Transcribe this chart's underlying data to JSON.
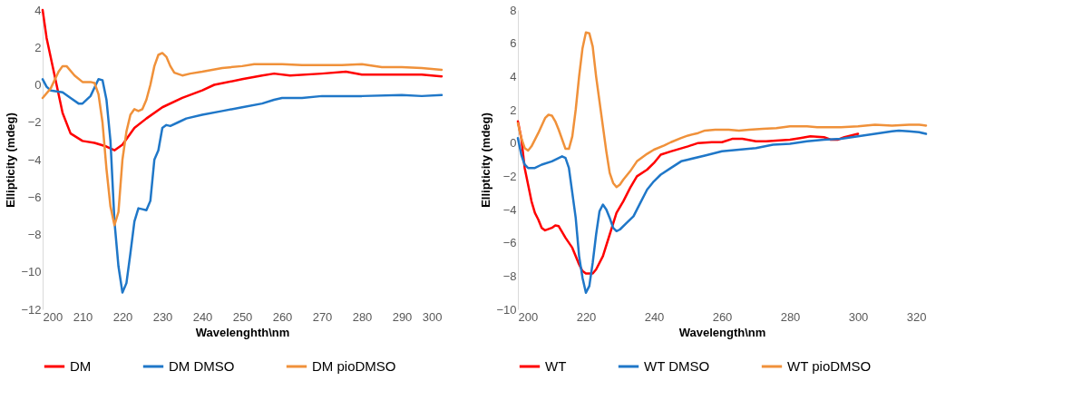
{
  "chart_data": [
    {
      "type": "line",
      "xlabel": "Wavelenghth\\nm",
      "ylabel": "Ellipticity (mdeg)",
      "xlim": [
        200,
        300
      ],
      "xticks": [
        200,
        210,
        220,
        230,
        240,
        250,
        260,
        270,
        280,
        290,
        300
      ],
      "ylim": [
        -12,
        4
      ],
      "yticks": [
        -12,
        -10,
        -8,
        -6,
        -4,
        -2,
        0,
        2,
        4
      ],
      "grid": false,
      "legend": "bottom",
      "series": [
        {
          "name": "DM",
          "color": "#ff0000",
          "x": [
            200,
            201,
            203,
            205,
            207,
            210,
            213,
            216,
            218,
            220,
            223,
            226,
            230,
            235,
            240,
            243,
            250,
            255,
            258,
            262,
            270,
            276,
            280,
            290,
            295,
            300
          ],
          "values": [
            4,
            2.5,
            0.5,
            -1.5,
            -2.6,
            -3,
            -3.1,
            -3.3,
            -3.5,
            -3.2,
            -2.3,
            -1.8,
            -1.2,
            -0.7,
            -0.3,
            0,
            0.3,
            0.5,
            0.6,
            0.5,
            0.6,
            0.7,
            0.55,
            0.55,
            0.55,
            0.45
          ]
        },
        {
          "name": "DM DMSO",
          "color": "#1f77c8",
          "x": [
            200,
            201,
            202,
            205,
            207,
            209,
            210,
            212,
            214,
            215,
            216,
            217,
            218,
            219,
            220,
            221,
            222,
            223,
            224,
            225,
            226,
            227,
            228,
            229,
            230,
            231,
            232,
            234,
            236,
            240,
            245,
            250,
            255,
            258,
            260,
            265,
            270,
            280,
            290,
            295,
            300
          ],
          "values": [
            0.3,
            -0.1,
            -0.3,
            -0.4,
            -0.7,
            -1.0,
            -1.0,
            -0.6,
            0.3,
            0.25,
            -0.8,
            -3,
            -7.3,
            -9.7,
            -11.1,
            -10.6,
            -9,
            -7.3,
            -6.6,
            -6.65,
            -6.7,
            -6.2,
            -4.0,
            -3.5,
            -2.3,
            -2.15,
            -2.2,
            -2.0,
            -1.8,
            -1.6,
            -1.4,
            -1.2,
            -1.0,
            -0.8,
            -0.7,
            -0.7,
            -0.6,
            -0.6,
            -0.55,
            -0.6,
            -0.55
          ]
        },
        {
          "name": "DM pioDMSO",
          "color": "#f0913a",
          "x": [
            200,
            202,
            204,
            205,
            206,
            208,
            210,
            212,
            213,
            214,
            215,
            216,
            217,
            218,
            219,
            220,
            221,
            222,
            223,
            224,
            225,
            226,
            227,
            228,
            229,
            230,
            231,
            232,
            233,
            235,
            237,
            240,
            245,
            250,
            253,
            260,
            265,
            275,
            280,
            285,
            290,
            295,
            300
          ],
          "values": [
            -0.7,
            -0.2,
            0.7,
            1.0,
            1.0,
            0.5,
            0.15,
            0.15,
            0.1,
            -0.5,
            -2,
            -4.5,
            -6.5,
            -7.5,
            -6.8,
            -4,
            -2.5,
            -1.6,
            -1.3,
            -1.4,
            -1.3,
            -0.8,
            0,
            1.0,
            1.6,
            1.7,
            1.5,
            1.0,
            0.65,
            0.5,
            0.6,
            0.7,
            0.9,
            1.0,
            1.1,
            1.1,
            1.05,
            1.05,
            1.1,
            0.95,
            0.95,
            0.9,
            0.8
          ]
        }
      ]
    },
    {
      "type": "line",
      "xlabel": "Wavelength\\nm",
      "ylabel": "Ellipticity (mdeg)",
      "xlim": [
        200,
        320
      ],
      "xticks": [
        200,
        220,
        240,
        260,
        280,
        300,
        320
      ],
      "ylim": [
        -10,
        8
      ],
      "yticks": [
        -10,
        -8,
        -6,
        -4,
        -2,
        0,
        2,
        4,
        6,
        8
      ],
      "grid": false,
      "legend": "bottom",
      "series": [
        {
          "name": "WT",
          "color": "#ff0000",
          "x": [
            200,
            201,
            202,
            203,
            204,
            205,
            206,
            207,
            208,
            210,
            211,
            212,
            214,
            216,
            218,
            219,
            220,
            222,
            223,
            225,
            227,
            229,
            231,
            233,
            235,
            238,
            240,
            242,
            245,
            250,
            253,
            257,
            260,
            263,
            266,
            270,
            273,
            276,
            280,
            283,
            286,
            290,
            292,
            294,
            296,
            300
          ],
          "values": [
            1.3,
            0.3,
            -1.5,
            -2.5,
            -3.5,
            -4.2,
            -4.6,
            -5.1,
            -5.25,
            -5.1,
            -4.95,
            -5.0,
            -5.7,
            -6.3,
            -7.3,
            -7.7,
            -7.85,
            -7.85,
            -7.6,
            -6.8,
            -5.5,
            -4.2,
            -3.5,
            -2.7,
            -2.0,
            -1.6,
            -1.2,
            -0.7,
            -0.5,
            -0.2,
            0,
            0.05,
            0.05,
            0.25,
            0.25,
            0.1,
            0.1,
            0.15,
            0.2,
            0.3,
            0.4,
            0.35,
            0.2,
            0.2,
            0.35,
            0.55
          ]
        },
        {
          "name": "WT DMSO",
          "color": "#1f77c8",
          "x": [
            200,
            201,
            202,
            203,
            205,
            207,
            210,
            213,
            214,
            215,
            216,
            217,
            218,
            219,
            220,
            221,
            222,
            223,
            224,
            225,
            226,
            227,
            228,
            229,
            230,
            232,
            234,
            236,
            238,
            240,
            242,
            245,
            248,
            250,
            255,
            260,
            265,
            270,
            275,
            280,
            285,
            290,
            295,
            300,
            305,
            310,
            312,
            315,
            318,
            320
          ],
          "values": [
            0.3,
            -0.7,
            -1.3,
            -1.5,
            -1.5,
            -1.3,
            -1.1,
            -0.8,
            -0.9,
            -1.5,
            -3,
            -4.5,
            -6.8,
            -8.1,
            -9.0,
            -8.6,
            -7.2,
            -5.5,
            -4.1,
            -3.7,
            -4.0,
            -4.5,
            -5.1,
            -5.3,
            -5.2,
            -4.8,
            -4.4,
            -3.6,
            -2.8,
            -2.3,
            -1.9,
            -1.5,
            -1.1,
            -1.0,
            -0.75,
            -0.5,
            -0.4,
            -0.3,
            -0.1,
            -0.05,
            0.1,
            0.2,
            0.25,
            0.4,
            0.55,
            0.7,
            0.75,
            0.7,
            0.65,
            0.55
          ]
        },
        {
          "name": "WT pioDMSO",
          "color": "#f0913a",
          "x": [
            200,
            201,
            202,
            203,
            204,
            206,
            208,
            209,
            210,
            211,
            212,
            214,
            215,
            216,
            217,
            218,
            219,
            220,
            221,
            222,
            223,
            224,
            225,
            226,
            227,
            228,
            229,
            230,
            231,
            233,
            235,
            238,
            240,
            243,
            245,
            248,
            250,
            253,
            255,
            258,
            262,
            265,
            268,
            272,
            276,
            280,
            285,
            288,
            295,
            300,
            305,
            310,
            315,
            318,
            320
          ],
          "values": [
            1.2,
            0.3,
            -0.3,
            -0.45,
            -0.2,
            0.6,
            1.5,
            1.7,
            1.65,
            1.3,
            0.8,
            -0.35,
            -0.35,
            0.4,
            2.0,
            4.0,
            5.7,
            6.65,
            6.6,
            5.8,
            4.0,
            2.5,
            1.0,
            -0.5,
            -1.8,
            -2.4,
            -2.65,
            -2.5,
            -2.2,
            -1.7,
            -1.1,
            -0.65,
            -0.4,
            -0.15,
            0.05,
            0.3,
            0.45,
            0.6,
            0.75,
            0.8,
            0.8,
            0.75,
            0.8,
            0.85,
            0.9,
            1.0,
            1.0,
            0.95,
            0.95,
            1.0,
            1.1,
            1.05,
            1.1,
            1.1,
            1.05
          ]
        }
      ]
    }
  ]
}
